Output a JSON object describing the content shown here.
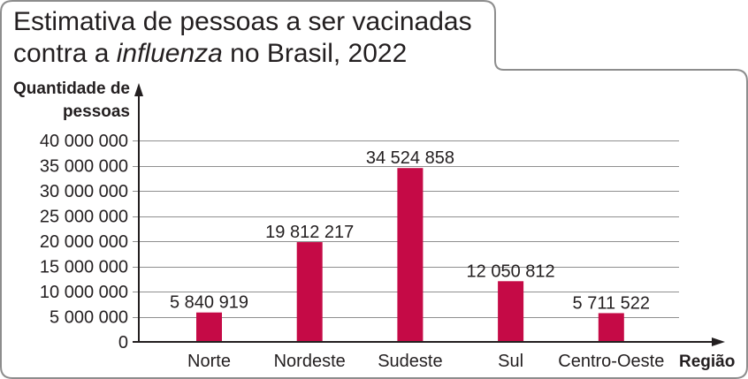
{
  "chart_data": {
    "type": "bar",
    "title": "Estimativa de pessoas a ser vacinadas contra a influenza no Brasil, 2022",
    "title_emphasis": "influenza",
    "xlabel": "Região",
    "ylabel": "Quantidade de pessoas",
    "categories": [
      "Norte",
      "Nordeste",
      "Sudeste",
      "Sul",
      "Centro-Oeste"
    ],
    "values": [
      5840919,
      19812217,
      34524858,
      12050812,
      5711522
    ],
    "value_labels": [
      "5 840 919",
      "19 812 217",
      "34 524 858",
      "12 050 812",
      "5 711 522"
    ],
    "ylim": [
      0,
      40000000
    ],
    "yticks": [
      0,
      5000000,
      10000000,
      15000000,
      20000000,
      25000000,
      30000000,
      35000000,
      40000000
    ],
    "ytick_labels": [
      "0",
      "5 000 000",
      "10 000 000",
      "15 000 000",
      "20 000 000",
      "25 000 000",
      "30 000 000",
      "35 000 000",
      "40 000 000"
    ],
    "grid": true,
    "legend": false,
    "colors": {
      "bar": "#c50a46",
      "grid": "#8f8f8f",
      "axis": "#231f20",
      "frame": "#8d8d8d"
    }
  }
}
